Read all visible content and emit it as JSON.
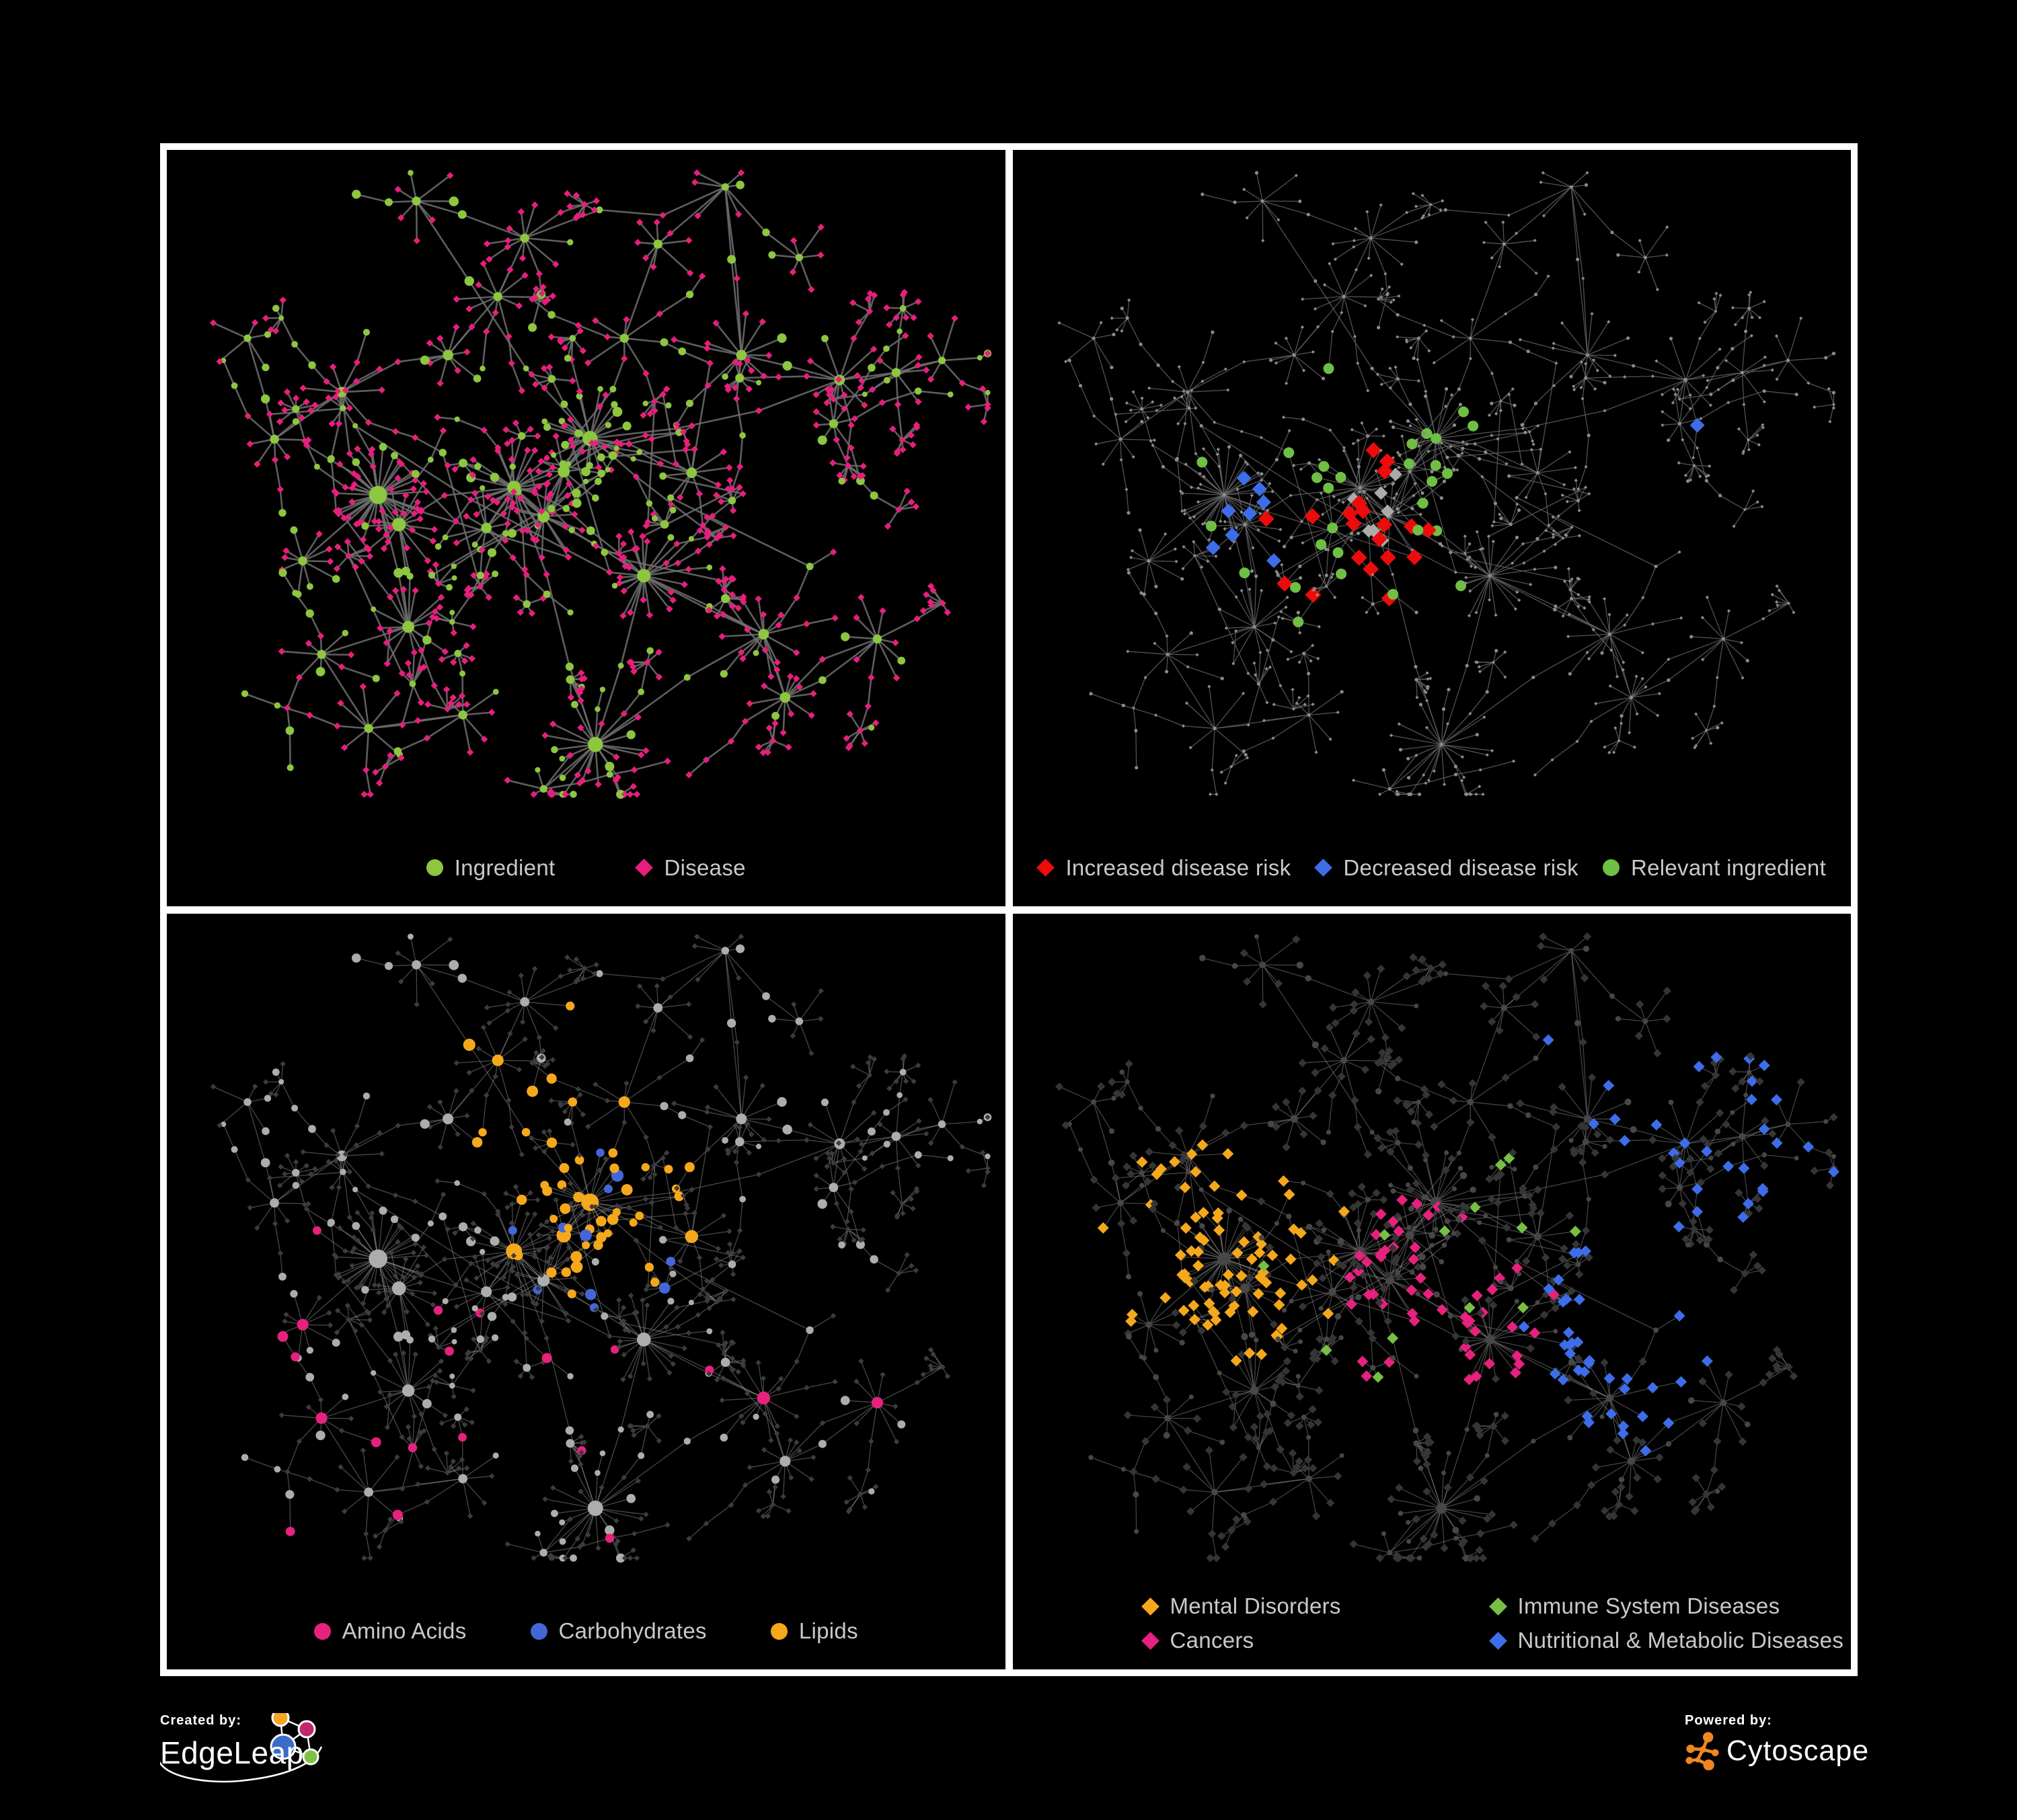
{
  "page": {
    "background": "#000000",
    "frame_color": "#FFFFFF"
  },
  "panels": [
    {
      "id": "ingredient-disease",
      "legend": [
        {
          "shape": "circle",
          "color": "#8DC63F",
          "label": "Ingredient"
        },
        {
          "shape": "diamond",
          "color": "#E81E7C",
          "label": "Disease"
        }
      ]
    },
    {
      "id": "disease-risk",
      "legend": [
        {
          "shape": "diamond",
          "color": "#EE0B0B",
          "label": "Increased disease risk"
        },
        {
          "shape": "diamond",
          "color": "#3D6DE8",
          "label": "Decreased disease risk"
        },
        {
          "shape": "circle",
          "color": "#6FBF44",
          "label": "Relevant ingredient"
        }
      ]
    },
    {
      "id": "macronutrients",
      "legend": [
        {
          "shape": "circle",
          "color": "#E6217E",
          "label": "Amino Acids"
        },
        {
          "shape": "circle",
          "color": "#4466D8",
          "label": "Carbohydrates"
        },
        {
          "shape": "circle",
          "color": "#F5A81C",
          "label": "Lipids"
        }
      ]
    },
    {
      "id": "disease-categories",
      "legend": [
        {
          "shape": "diamond",
          "color": "#F5A81C",
          "label": "Mental Disorders"
        },
        {
          "shape": "diamond",
          "color": "#77C043",
          "label": "Immune System Diseases"
        },
        {
          "shape": "diamond",
          "color": "#E6217E",
          "label": "Cancers"
        },
        {
          "shape": "diamond",
          "color": "#3D6DE8",
          "label": "Nutritional & Metabolic Diseases"
        }
      ]
    }
  ],
  "footer": {
    "created_by": "Created by:",
    "brand": "EdgeLeap",
    "powered_by": "Powered by:",
    "engine": "Cytoscape",
    "edgeleap_colors": {
      "orange": "#F5A623",
      "magenta": "#C2266D",
      "blue": "#3C6BC9",
      "green": "#7DC242"
    },
    "cytoscape_orange": "#EE8722"
  },
  "network": {
    "seed": 7,
    "cross_links": 26,
    "hubs": [
      [
        314,
        513,
        40,
        12
      ],
      [
        345,
        557,
        16,
        9
      ],
      [
        516,
        502,
        26,
        9
      ],
      [
        560,
        545,
        20,
        8
      ],
      [
        590,
        478,
        14,
        8
      ],
      [
        629,
        429,
        26,
        10,
        0.85
      ],
      [
        475,
        562,
        12,
        7
      ],
      [
        709,
        633,
        24,
        9
      ],
      [
        637,
        884,
        22,
        10
      ],
      [
        359,
        709,
        16,
        8
      ],
      [
        202,
        611,
        10,
        6
      ],
      [
        371,
        76,
        8,
        6
      ],
      [
        532,
        131,
        10,
        6
      ],
      [
        492,
        218,
        10,
        6
      ],
      [
        418,
        305,
        10,
        7
      ],
      [
        260,
        360,
        10,
        7
      ],
      [
        160,
        430,
        8,
        6
      ],
      [
        830,
        55,
        6,
        5
      ],
      [
        854,
        305,
        12,
        7
      ],
      [
        1000,
        342,
        10,
        7
      ],
      [
        1084,
        331,
        8,
        6
      ],
      [
        1152,
        313,
        6,
        5
      ],
      [
        991,
        407,
        8,
        6
      ],
      [
        887,
        720,
        14,
        7
      ],
      [
        919,
        814,
        12,
        7
      ],
      [
        1056,
        727,
        10,
        6
      ],
      [
        730,
        140,
        8,
        6
      ],
      [
        680,
        280,
        8,
        6
      ],
      [
        780,
        480,
        10,
        7
      ],
      [
        230,
        750,
        8,
        6
      ],
      [
        300,
        860,
        8,
        6
      ],
      [
        440,
        840,
        8,
        6
      ],
      [
        560,
        950,
        6,
        5
      ],
      [
        120,
        280,
        5,
        5
      ],
      [
        940,
        160,
        6,
        5
      ]
    ],
    "extra_links": [
      [
        5,
        19
      ],
      [
        8,
        23
      ],
      [
        2,
        8
      ],
      [
        7,
        23
      ],
      [
        5,
        28
      ],
      [
        14,
        15
      ],
      [
        0,
        9
      ],
      [
        18,
        17
      ],
      [
        24,
        25
      ]
    ],
    "styles": [
      {
        "edge": {
          "color": "#6F6F6F",
          "width": 2.6,
          "opacity": 0.85
        },
        "circle": {
          "fill": "#8DC63F",
          "scale": 1.12
        },
        "diamond": {
          "fill": "#E81E7C",
          "size": 5.2
        }
      },
      {
        "edge": {
          "color": "#666666",
          "width": 1.3,
          "opacity": 0.8
        },
        "base": {
          "fill": "#8C8C8C",
          "size": 2.6
        },
        "highlights": {
          "red": {
            "color": "#EE0B0B",
            "count": 20,
            "size": 12
          },
          "blue": {
            "color": "#3D6DE8",
            "count": 9,
            "size": 11
          },
          "silver": {
            "color": "#ABABAB",
            "count": 7,
            "size": 10
          },
          "green": {
            "color": "#6FBF44",
            "count": 30,
            "size": 8
          }
        },
        "regions": {
          "red": [
            [
              520,
              560,
              260
            ]
          ],
          "blue": [
            [
              380,
              560,
              200
            ],
            [
              1028,
              387,
              70
            ]
          ],
          "silver": [
            [
              560,
              600,
              260
            ]
          ],
          "green": [
            [
              480,
              520,
              320
            ]
          ]
        }
      },
      {
        "edge": {
          "color": "#ABABAB",
          "width": 1.3,
          "opacity": 0.42
        },
        "diamond": {
          "fill": "#3C3C3C",
          "size": 4.2
        },
        "circle_base": {
          "fill": "#ADADAD",
          "scale": 1.15
        },
        "highlights": {
          "orange": {
            "color": "#F5A81C",
            "count": 54
          },
          "pink": {
            "color": "#E6217E",
            "count": 20
          },
          "blue": {
            "color": "#4466D8",
            "count": 11
          }
        },
        "regions": {
          "orange": [
            [
              629,
              429,
              150
            ],
            [
              560,
              260,
              130
            ]
          ],
          "pink": [
            [
              300,
              780,
              400
            ],
            [
              900,
              760,
              400
            ]
          ],
          "blue": [
            [
              660,
              450,
              110
            ]
          ]
        }
      },
      {
        "edge": {
          "color": "#8F8F8F",
          "width": 1.2,
          "opacity": 0.5
        },
        "circle": {
          "fill": "#474747",
          "scale": 0.8
        },
        "diamond": {
          "fill": "#353535",
          "size": 6.2
        },
        "highlights": {
          "orange": {
            "color": "#F5A81C",
            "count": 80,
            "size": 8.5
          },
          "pink": {
            "color": "#E6217E",
            "count": 52,
            "size": 8.5
          },
          "blue": {
            "color": "#3D6DE8",
            "count": 66,
            "size": 8.5
          },
          "green": {
            "color": "#77C043",
            "count": 13,
            "size": 8.5
          }
        },
        "regions": {
          "orange": [
            [
              314,
              513,
              125
            ]
          ],
          "pink": [
            [
              640,
              580,
              150
            ]
          ],
          "blue": [
            [
              900,
              640,
              170
            ],
            [
              950,
              180,
              170
            ],
            [
              1100,
              350,
              160
            ]
          ],
          "green": [
            [
              600,
              500,
              600
            ]
          ]
        }
      }
    ]
  }
}
